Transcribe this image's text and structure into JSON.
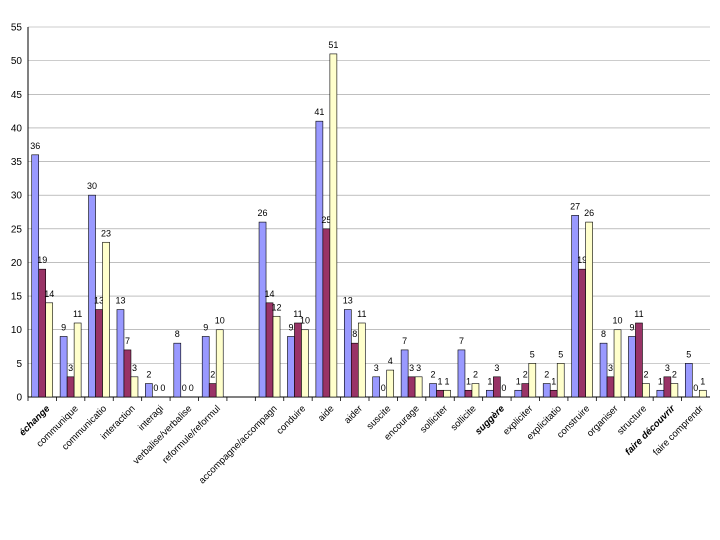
{
  "chart_data": {
    "type": "bar",
    "ylim": [
      0,
      55
    ],
    "yticks": [
      0,
      5,
      10,
      15,
      20,
      25,
      30,
      35,
      40,
      45,
      50,
      55
    ],
    "grid": true,
    "colors": [
      "#9999ff",
      "#993366",
      "#ffffcc"
    ],
    "categories": [
      {
        "label": "échange",
        "emphasis": true,
        "values": [
          36,
          19,
          14
        ]
      },
      {
        "label": "communique",
        "emphasis": false,
        "values": [
          9,
          3,
          11
        ]
      },
      {
        "label": "communicatio",
        "emphasis": false,
        "values": [
          30,
          13,
          23
        ]
      },
      {
        "label": "interaction",
        "emphasis": false,
        "values": [
          13,
          7,
          3
        ]
      },
      {
        "label": "interagi",
        "emphasis": false,
        "values": [
          2,
          0,
          0
        ]
      },
      {
        "label": "verbalise/verbalise",
        "emphasis": false,
        "values": [
          8,
          0,
          0
        ]
      },
      {
        "label": "reformule/reformul",
        "emphasis": false,
        "values": [
          9,
          2,
          10
        ]
      },
      {
        "label": "",
        "emphasis": false,
        "values": [
          null,
          null,
          null
        ]
      },
      {
        "label": "accompagne/accompagn",
        "emphasis": false,
        "values": [
          26,
          14,
          12
        ]
      },
      {
        "label": "conduire",
        "emphasis": false,
        "values": [
          9,
          11,
          10
        ]
      },
      {
        "label": "aide",
        "emphasis": false,
        "values": [
          41,
          25,
          51
        ]
      },
      {
        "label": "aider",
        "emphasis": false,
        "values": [
          13,
          8,
          11
        ]
      },
      {
        "label": "suscite",
        "emphasis": false,
        "values": [
          3,
          0,
          4
        ]
      },
      {
        "label": "encourage",
        "emphasis": false,
        "values": [
          7,
          3,
          3
        ]
      },
      {
        "label": "solliciter",
        "emphasis": false,
        "values": [
          2,
          1,
          1
        ]
      },
      {
        "label": "sollicite",
        "emphasis": false,
        "values": [
          7,
          1,
          2
        ]
      },
      {
        "label": "suggère",
        "emphasis": true,
        "values": [
          1,
          3,
          0
        ]
      },
      {
        "label": "expliciter",
        "emphasis": false,
        "values": [
          1,
          2,
          5
        ]
      },
      {
        "label": "explicitatio",
        "emphasis": false,
        "values": [
          2,
          1,
          5
        ]
      },
      {
        "label": "construire",
        "emphasis": false,
        "values": [
          27,
          19,
          26
        ]
      },
      {
        "label": "organiser",
        "emphasis": false,
        "values": [
          8,
          3,
          10
        ]
      },
      {
        "label": "structure",
        "emphasis": false,
        "values": [
          9,
          11,
          2
        ]
      },
      {
        "label": "faire découvrir",
        "emphasis": true,
        "values": [
          1,
          3,
          2
        ]
      },
      {
        "label": "faire comprendr",
        "emphasis": false,
        "values": [
          5,
          0,
          1
        ]
      }
    ]
  }
}
